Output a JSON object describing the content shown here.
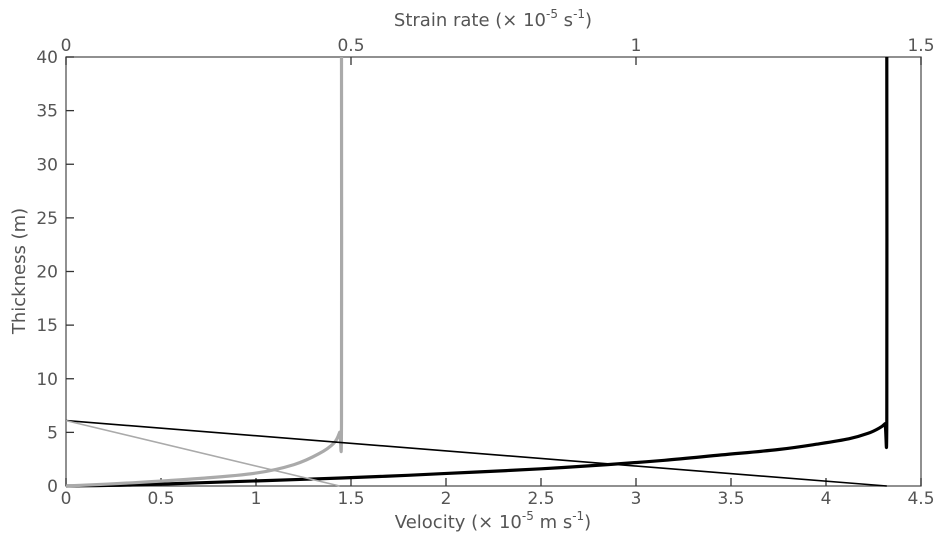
{
  "chart_data": {
    "type": "line",
    "title": "",
    "bottom_axis": {
      "label_prefix": "Velocity (× 10",
      "label_exp": "-5",
      "label_suffix": " m s",
      "label_exp2": "-1",
      "label_close": ")",
      "lim": [
        0,
        4.5
      ],
      "ticks": [
        0,
        0.5,
        1,
        1.5,
        2,
        2.5,
        3,
        3.5,
        4,
        4.5
      ],
      "tick_labels": [
        "0",
        "0.5",
        "1",
        "1.5",
        "2",
        "2.5",
        "3",
        "3.5",
        "4",
        "4.5"
      ]
    },
    "top_axis": {
      "label_prefix": "Strain rate (× 10",
      "label_exp": "-5",
      "label_suffix": " s",
      "label_exp2": "-1",
      "label_close": ")",
      "lim": [
        0,
        1.5
      ],
      "ticks": [
        0,
        0.5,
        1,
        1.5
      ],
      "tick_labels": [
        "0",
        "0.5",
        "1",
        "1.5"
      ]
    },
    "left_axis": {
      "label": "Thickness (m)",
      "lim": [
        0,
        40
      ],
      "ticks": [
        0,
        5,
        10,
        15,
        20,
        25,
        30,
        35,
        40
      ],
      "tick_labels": [
        "0",
        "5",
        "10",
        "15",
        "20",
        "25",
        "30",
        "35",
        "40"
      ]
    },
    "grid": false,
    "legend": "none",
    "series": [
      {
        "axis": "bottom",
        "color": "#000000",
        "style": "thick",
        "profile": "velocity",
        "surface_value": 4.32,
        "transition_depth": 6,
        "points": [
          [
            0,
            0
          ],
          [
            0.35,
            0.1
          ],
          [
            0.7,
            0.3
          ],
          [
            1.05,
            0.5
          ],
          [
            1.45,
            0.75
          ],
          [
            1.8,
            1.0
          ],
          [
            2.15,
            1.3
          ],
          [
            2.5,
            1.6
          ],
          [
            2.85,
            2.0
          ],
          [
            3.15,
            2.4
          ],
          [
            3.45,
            2.9
          ],
          [
            3.75,
            3.4
          ],
          [
            3.95,
            3.9
          ],
          [
            4.12,
            4.4
          ],
          [
            4.22,
            4.9
          ],
          [
            4.28,
            5.4
          ],
          [
            4.31,
            5.8
          ],
          [
            4.32,
            6.2
          ],
          [
            4.32,
            40
          ]
        ]
      },
      {
        "axis": "bottom",
        "color": "#aaaaaa",
        "style": "thick",
        "profile": "velocity",
        "surface_value": 1.45,
        "transition_depth": 6,
        "points": [
          [
            0,
            0
          ],
          [
            0.35,
            0.3
          ],
          [
            0.7,
            0.7
          ],
          [
            1.0,
            1.2
          ],
          [
            1.2,
            2.0
          ],
          [
            1.33,
            3.0
          ],
          [
            1.41,
            4.0
          ],
          [
            1.44,
            5.0
          ],
          [
            1.45,
            6.0
          ],
          [
            1.45,
            40
          ]
        ]
      },
      {
        "axis": "top",
        "color": "#000000",
        "style": "thin",
        "profile": "strain_rate",
        "points": [
          [
            0,
            6.1
          ],
          [
            1.44,
            0
          ],
          [
            1.44,
            0
          ]
        ]
      },
      {
        "axis": "top",
        "color": "#aaaaaa",
        "style": "thin",
        "profile": "strain_rate",
        "points": [
          [
            0,
            6.1
          ],
          [
            0.48,
            0
          ]
        ]
      }
    ]
  }
}
